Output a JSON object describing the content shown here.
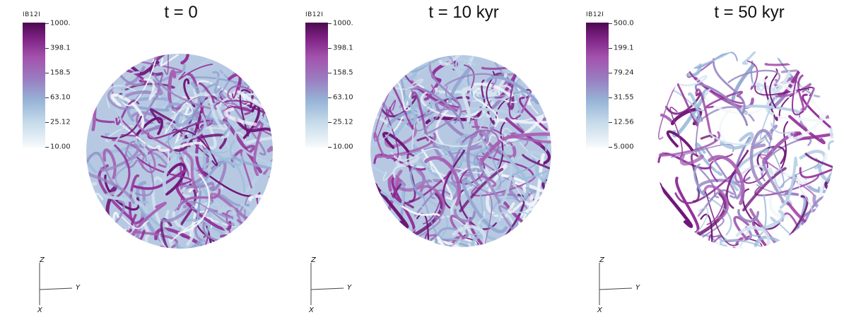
{
  "panels": [
    {
      "title": "t = 0",
      "colorbar": {
        "title": "IB12I",
        "labels": [
          "1000.",
          "398.1",
          "158.5",
          "63.10",
          "25.12",
          "10.00"
        ]
      },
      "axes": {
        "z": "Z",
        "y": "Y",
        "x": "X"
      }
    },
    {
      "title": "t = 10 kyr",
      "colorbar": {
        "title": "IB12I",
        "labels": [
          "1000.",
          "398.1",
          "158.5",
          "63.10",
          "25.12",
          "10.00"
        ]
      },
      "axes": {
        "z": "Z",
        "y": "Y",
        "x": "X"
      }
    },
    {
      "title": "t = 50 kyr",
      "colorbar": {
        "title": "IB12I",
        "labels": [
          "500.0",
          "199.1",
          "79.24",
          "31.55",
          "12.56",
          "5.000"
        ]
      },
      "axes": {
        "z": "Z",
        "y": "Y",
        "x": "X"
      }
    }
  ],
  "colors": {
    "high": "#4a0a4f",
    "mid_high": "#a353ad",
    "mid": "#96b3d6",
    "low": "#f7fafc"
  }
}
